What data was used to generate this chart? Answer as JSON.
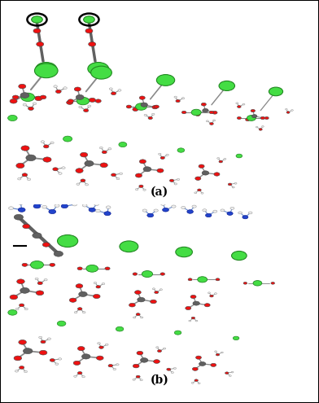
{
  "figure_width": 3.92,
  "figure_height": 4.95,
  "dpi": 100,
  "background_color": "#ffffff",
  "panel_a_label": "(a)",
  "panel_b_label": "(b)",
  "label_fontsize": 10,
  "label_fontweight": "bold",
  "ca_color": "#44dd44",
  "o_color": "#ee1111",
  "c_color": "#606060",
  "h_color": "#eeeeee",
  "w_color": "#2244cc",
  "bond_color": "#888888"
}
